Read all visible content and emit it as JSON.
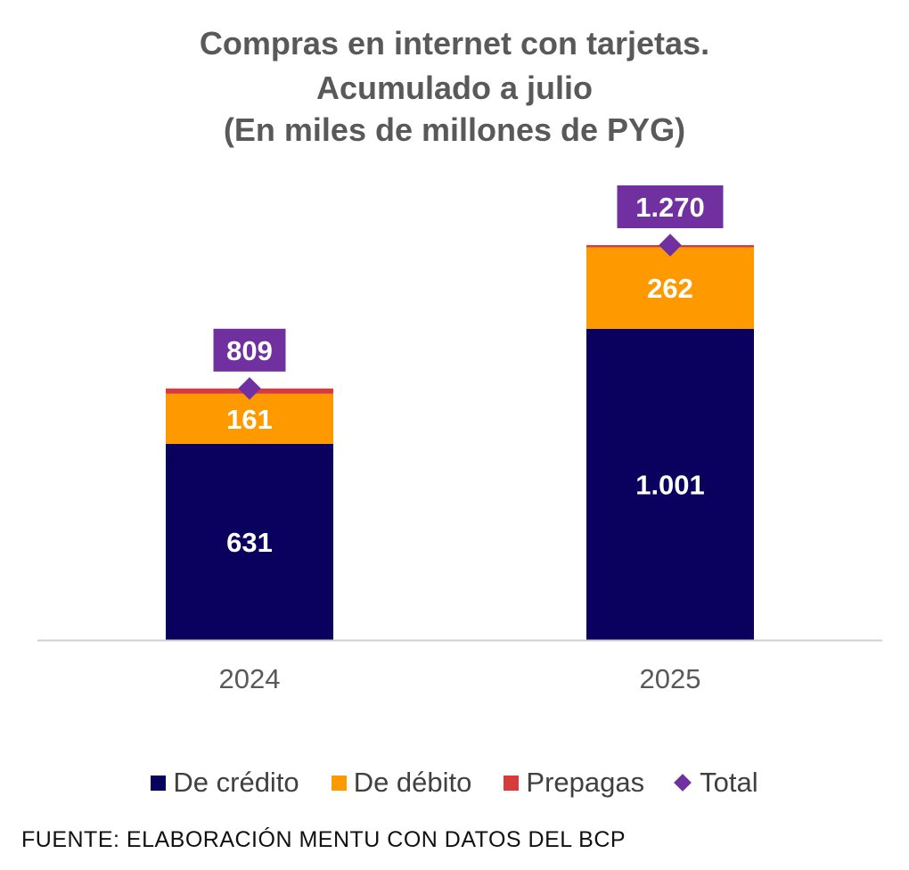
{
  "chart_data": {
    "type": "bar",
    "stacked": true,
    "title_lines": [
      "Compras en internet con tarjetas.",
      "Acumulado a julio",
      "(En miles de millones de PYG)"
    ],
    "categories": [
      "2024",
      "2025"
    ],
    "series": [
      {
        "name": "De crédito",
        "values": [
          631,
          1001
        ],
        "color": "#0a005e",
        "labels": [
          "631",
          "1.001"
        ]
      },
      {
        "name": "De débito",
        "values": [
          161,
          262
        ],
        "color": "#ff9900",
        "labels": [
          "161",
          "262"
        ]
      },
      {
        "name": "Prepagas",
        "values": [
          17,
          7
        ],
        "color": "#d63c3c"
      }
    ],
    "total": {
      "name": "Total",
      "values": [
        809,
        1270
      ],
      "labels": [
        "809",
        "1.270"
      ],
      "color": "#7030a0"
    },
    "ylim": [
      0,
      1270
    ],
    "grid": false,
    "legend": "bottom"
  },
  "source": "FUENTE: ELABORACIÓN MENTU CON DATOS DEL BCP"
}
